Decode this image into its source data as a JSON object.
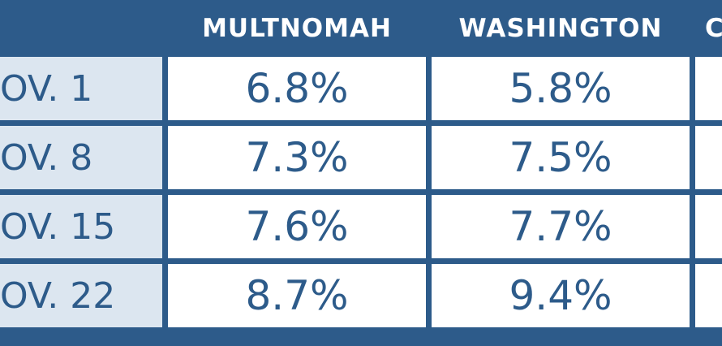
{
  "table": {
    "header": [
      "MULTNOMAH",
      "WASHINGTON",
      "C"
    ],
    "rows": [
      [
        "OV. 1",
        "6.8%",
        "5.8%"
      ],
      [
        "OV. 8",
        "7.3%",
        "7.5%"
      ],
      [
        "OV. 15",
        "7.6%",
        "7.7%"
      ],
      [
        "OV. 22",
        "8.7%",
        "9.4%"
      ]
    ]
  }
}
